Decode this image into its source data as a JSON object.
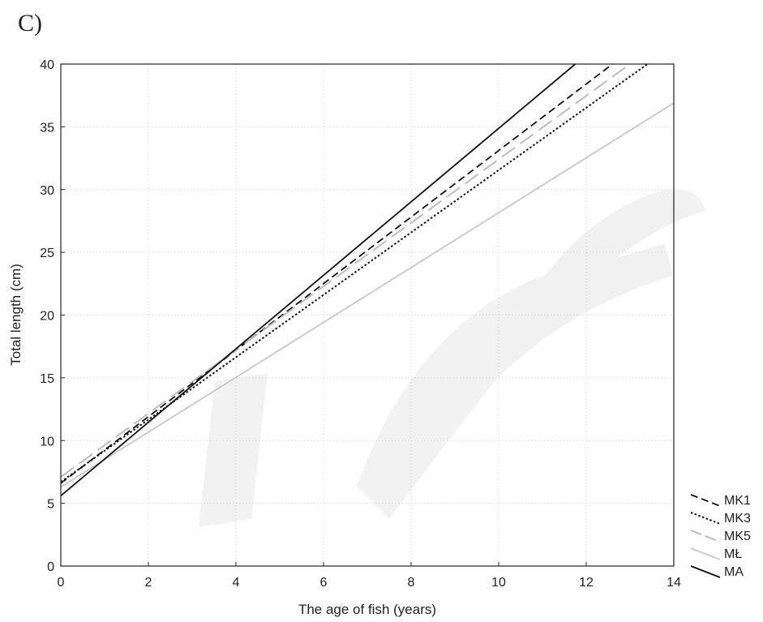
{
  "panel_label": "C)",
  "chart_data": {
    "type": "line",
    "title": "",
    "xlabel": "The age of fish (years)",
    "ylabel": "Total length (cm)",
    "xlim": [
      0,
      14
    ],
    "ylim": [
      0,
      40
    ],
    "xticks": [
      0,
      2,
      4,
      6,
      8,
      10,
      12,
      14
    ],
    "yticks": [
      0,
      5,
      10,
      15,
      20,
      25,
      30,
      35,
      40
    ],
    "grid": true,
    "legend_position": "right-bottom, outside plot",
    "series": [
      {
        "name": "MK1",
        "style": "dashed",
        "color": "#111111",
        "x": [
          0,
          12.6
        ],
        "y": [
          6.6,
          40
        ]
      },
      {
        "name": "MK3",
        "style": "dotted",
        "color": "#111111",
        "x": [
          0,
          13.4
        ],
        "y": [
          6.7,
          40
        ]
      },
      {
        "name": "MK5",
        "style": "long-dash",
        "color": "#bdbdbd",
        "x": [
          0,
          13.0
        ],
        "y": [
          7.1,
          40
        ]
      },
      {
        "name": "MŁ",
        "style": "solid",
        "color": "#c8c8c8",
        "x": [
          0,
          14
        ],
        "y": [
          6.3,
          36.9
        ]
      },
      {
        "name": "MA",
        "style": "solid",
        "color": "#111111",
        "x": [
          0,
          11.75
        ],
        "y": [
          5.6,
          40
        ]
      }
    ]
  }
}
